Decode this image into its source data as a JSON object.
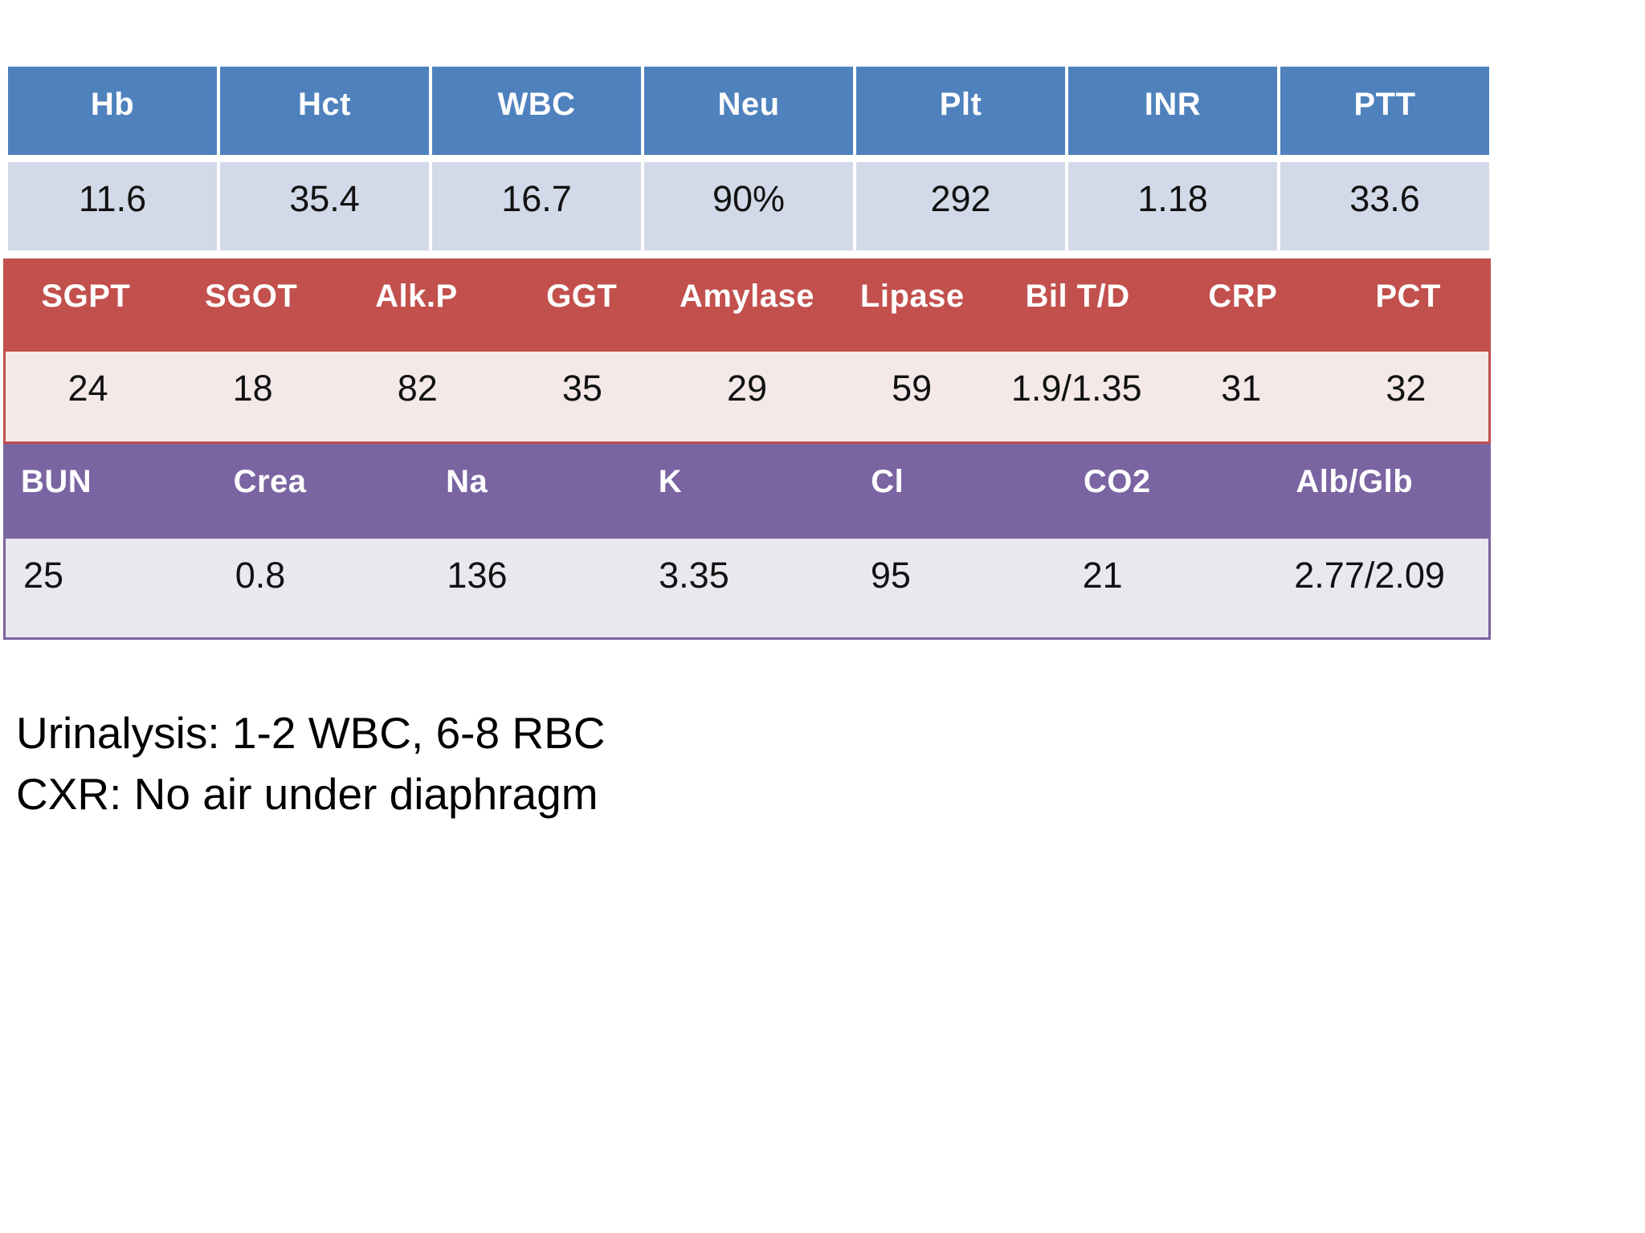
{
  "page": {
    "background": "#ffffff"
  },
  "tables": [
    {
      "name": "hematology-coagulation",
      "header_bg": "#4f81bd",
      "row_bg": "#d2d9e8",
      "border_color": "",
      "columns": [
        "Hb",
        "Hct",
        "WBC",
        "Neu",
        "Plt",
        "INR",
        "PTT"
      ],
      "values": [
        "11.6",
        "35.4",
        "16.7",
        "90%",
        "292",
        "1.18",
        "33.6"
      ]
    },
    {
      "name": "liver-pancreas-inflammation",
      "header_bg": "#c2504d",
      "row_bg": "#f4e9e8",
      "border_color": "#bf4e4b",
      "columns": [
        "SGPT",
        "SGOT",
        "Alk.P",
        "GGT",
        "Amylase",
        "Lipase",
        "Bil T/D",
        "CRP",
        "PCT"
      ],
      "values": [
        "24",
        "18",
        "82",
        "35",
        "29",
        "59",
        "1.9/1.35",
        "31",
        "32"
      ]
    },
    {
      "name": "renal-electrolytes",
      "header_bg": "#7b64a2",
      "row_bg": "#e9e8ee",
      "border_color": "#7b64a2",
      "columns": [
        "BUN",
        "Crea",
        "Na",
        "K",
        "Cl",
        "CO2",
        "Alb/Glb"
      ],
      "values": [
        "25",
        "0.8",
        "136",
        "3.35",
        "95",
        "21",
        "2.77/2.09"
      ]
    }
  ],
  "notes": [
    "Urinalysis: 1-2 WBC, 6-8 RBC",
    "CXR: No air under diaphragm"
  ]
}
